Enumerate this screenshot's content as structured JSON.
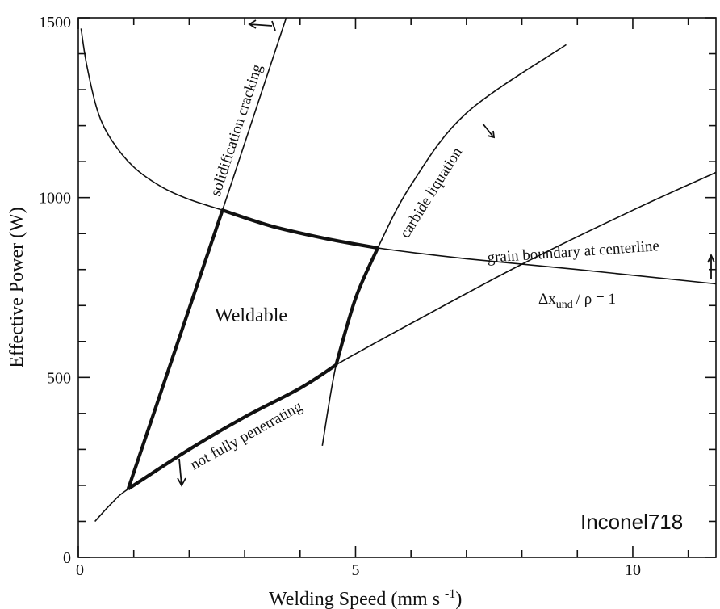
{
  "chart_data": {
    "type": "line",
    "xlabel": "Welding Speed (mm s-1)",
    "ylabel": "Effective Power (W)",
    "xlim": [
      0,
      11.5
    ],
    "ylim": [
      0,
      1500
    ],
    "x_ticks": [
      "0",
      "5",
      "10"
    ],
    "y_ticks": [
      "0",
      "500",
      "1000",
      "1500"
    ],
    "material_label": "Inconel718",
    "region_label": "Weldable",
    "series": [
      {
        "name": "solidification cracking",
        "x": [
          0.9,
          2.6,
          3.75
        ],
        "y": [
          190,
          965,
          1500
        ]
      },
      {
        "name": "carbide liquation",
        "x": [
          4.4,
          4.65,
          5.0,
          5.4,
          6.0,
          7.0,
          8.8
        ],
        "y": [
          310,
          535,
          720,
          860,
          1035,
          1235,
          1425
        ]
      },
      {
        "name": "grain boundary at centerline",
        "x": [
          0.05,
          0.15,
          0.35,
          0.6,
          1.0,
          1.5,
          2.0,
          2.6,
          3.5,
          4.5,
          5.4,
          7.0,
          9.0,
          11.5
        ],
        "y": [
          1470,
          1370,
          1240,
          1160,
          1085,
          1030,
          995,
          965,
          920,
          885,
          860,
          830,
          800,
          760
        ]
      },
      {
        "name": "not fully penetrating",
        "x": [
          0.3,
          0.6,
          0.9,
          2.0,
          3.0,
          4.0,
          4.65,
          6.0,
          8.0,
          10.0,
          11.5
        ],
        "y": [
          100,
          150,
          190,
          300,
          390,
          470,
          535,
          650,
          815,
          965,
          1070
        ]
      }
    ],
    "weldable_boundary": {
      "x": [
        0.9,
        2.6,
        3.5,
        4.5,
        5.4,
        5.0,
        4.65,
        4.0,
        3.0,
        2.0,
        0.9
      ],
      "y": [
        190,
        965,
        920,
        885,
        860,
        720,
        535,
        470,
        390,
        300,
        190
      ]
    },
    "annotations": {
      "solidification": "solidification cracking",
      "carbide": "carbide liquation",
      "grain_boundary": "grain boundary at centerline",
      "delta_x": "Δx",
      "delta_sub": "und",
      "ratio_rest": "/ ρ = 1",
      "penetration": "not fully penetrating"
    },
    "colors": {
      "lines": "#111111",
      "background": "#ffffff"
    },
    "grid": false
  }
}
